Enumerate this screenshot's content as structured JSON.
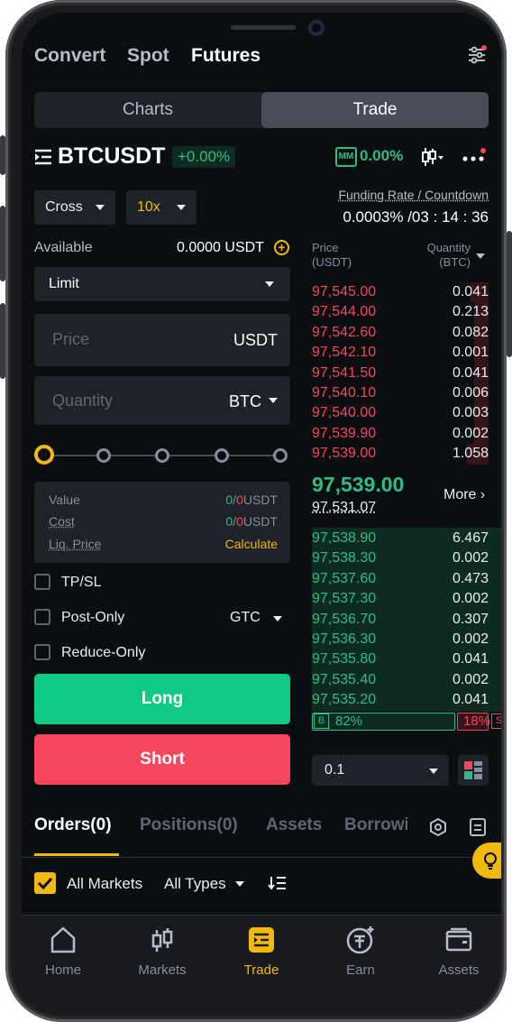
{
  "top_nav": {
    "convert": "Convert",
    "spot": "Spot",
    "futures": "Futures"
  },
  "segment": {
    "charts": "Charts",
    "trade": "Trade"
  },
  "symbol": {
    "name": "BTCUSDT",
    "change": "+0.00%",
    "mm_badge": "MM",
    "mm_value": "0.00%"
  },
  "funding": {
    "label": "Funding Rate / Countdown",
    "value": "0.0003% /03 : 14 : 36"
  },
  "margin": {
    "mode": "Cross",
    "leverage": "10x"
  },
  "available": {
    "label": "Available",
    "value": "0.0000 USDT"
  },
  "order_type": "Limit",
  "price_field": {
    "placeholder": "Price",
    "unit": "USDT"
  },
  "quantity_field": {
    "placeholder": "Quantity",
    "unit": "BTC"
  },
  "summary": {
    "value_label": "Value",
    "value_a": "0",
    "value_sep": "/",
    "value_b": "0",
    "value_unit": "USDT",
    "cost_label": "Cost",
    "cost_a": "0",
    "cost_sep": "/",
    "cost_b": "0",
    "cost_unit": "USDT",
    "liq_label": "Liq. Price",
    "liq_action": "Calculate"
  },
  "options": {
    "tpsl": "TP/SL",
    "post_only": "Post-Only",
    "tif": "GTC",
    "reduce_only": "Reduce-Only"
  },
  "actions": {
    "long": "Long",
    "short": "Short"
  },
  "orderbook": {
    "price_header": "Price",
    "price_unit": "(USDT)",
    "qty_header": "Quantity",
    "qty_unit": "(BTC)",
    "asks": [
      {
        "price": "97,545.00",
        "qty": "0.041",
        "depth": 0.1
      },
      {
        "price": "97,544.00",
        "qty": "0.213",
        "depth": 0.08
      },
      {
        "price": "97,542.60",
        "qty": "0.082",
        "depth": 0.08
      },
      {
        "price": "97,542.10",
        "qty": "0.001",
        "depth": 0.08
      },
      {
        "price": "97,541.50",
        "qty": "0.041",
        "depth": 0.08
      },
      {
        "price": "97,540.10",
        "qty": "0.006",
        "depth": 0.08
      },
      {
        "price": "97,540.00",
        "qty": "0.003",
        "depth": 0.08
      },
      {
        "price": "97,539.90",
        "qty": "0.002",
        "depth": 0.08
      },
      {
        "price": "97,539.00",
        "qty": "1.058",
        "depth": 0.12
      }
    ],
    "last_price": "97,539.00",
    "mark_price": "97,531.07",
    "more": "More",
    "bids": [
      {
        "price": "97,538.90",
        "qty": "6.467",
        "depth": 1.0
      },
      {
        "price": "97,538.30",
        "qty": "0.002",
        "depth": 1.0
      },
      {
        "price": "97,537.60",
        "qty": "0.473",
        "depth": 1.0
      },
      {
        "price": "97,537.30",
        "qty": "0.002",
        "depth": 1.0
      },
      {
        "price": "97,536.70",
        "qty": "0.307",
        "depth": 1.0
      },
      {
        "price": "97,536.30",
        "qty": "0.002",
        "depth": 1.0
      },
      {
        "price": "97,535.80",
        "qty": "0.041",
        "depth": 1.0
      },
      {
        "price": "97,535.40",
        "qty": "0.002",
        "depth": 1.0
      },
      {
        "price": "97,535.20",
        "qty": "0.041",
        "depth": 1.0
      }
    ],
    "buy_badge": "B",
    "buy_pct": "82%",
    "sell_pct": "18%",
    "sell_badge": "S",
    "buy_ratio": 0.82,
    "precision": "0.1"
  },
  "bottom_tabs": {
    "orders": "Orders(0)",
    "positions": "Positions(0)",
    "assets": "Assets",
    "borrow": "Borrowi"
  },
  "filters": {
    "all_markets": "All Markets",
    "all_types": "All Types"
  },
  "tabbar": {
    "home": "Home",
    "markets": "Markets",
    "trade": "Trade",
    "earn": "Earn",
    "assets": "Assets"
  },
  "colors": {
    "green": "#2ebd85",
    "red": "#f6465d",
    "yellow": "#f0b90b",
    "bg": "#0b0e11",
    "panel": "#1e2329"
  }
}
